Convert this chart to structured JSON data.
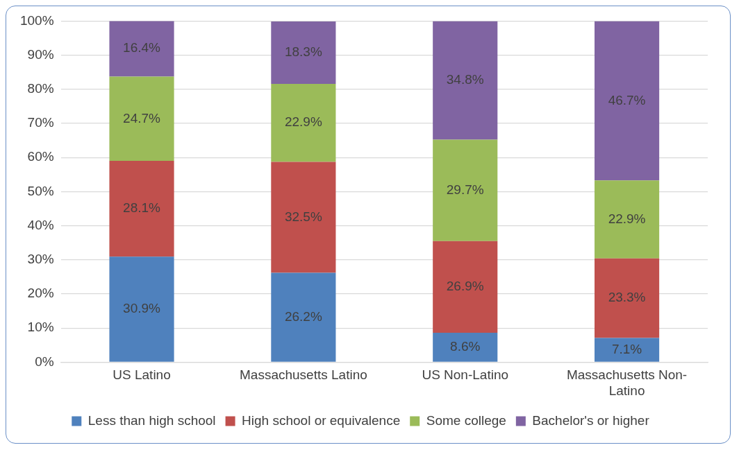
{
  "chart_data": {
    "type": "bar",
    "stacked": true,
    "categories": [
      "US Latino",
      "Massachusetts Latino",
      "US Non-Latino",
      "Massachusetts Non-Latino"
    ],
    "series": [
      {
        "name": "Less than high school",
        "color": "#4f81bd",
        "values": [
          30.9,
          26.2,
          8.6,
          7.1
        ],
        "value_labels": [
          "30.9%",
          "26.2%",
          "8.6%",
          "7.1%"
        ]
      },
      {
        "name": "High school or equivalence",
        "color": "#c0504d",
        "values": [
          28.1,
          32.5,
          26.9,
          23.3
        ],
        "value_labels": [
          "28.1%",
          "32.5%",
          "26.9%",
          "23.3%"
        ]
      },
      {
        "name": "Some college",
        "color": "#9bbb59",
        "values": [
          24.7,
          22.9,
          29.7,
          22.9
        ],
        "value_labels": [
          "24.7%",
          "22.9%",
          "29.7%",
          "22.9%"
        ]
      },
      {
        "name": "Bachelor's or higher",
        "color": "#8064a2",
        "values": [
          16.4,
          18.3,
          34.8,
          46.7
        ],
        "value_labels": [
          "16.4%",
          "18.3%",
          "34.8%",
          "46.7%"
        ]
      }
    ],
    "ylim": [
      0,
      100
    ],
    "yticks": [
      {
        "value": 0,
        "label": "0%"
      },
      {
        "value": 10,
        "label": "10%"
      },
      {
        "value": 20,
        "label": "20%"
      },
      {
        "value": 30,
        "label": "30%"
      },
      {
        "value": 40,
        "label": "40%"
      },
      {
        "value": 50,
        "label": "50%"
      },
      {
        "value": 60,
        "label": "60%"
      },
      {
        "value": 70,
        "label": "70%"
      },
      {
        "value": 80,
        "label": "80%"
      },
      {
        "value": 90,
        "label": "90%"
      },
      {
        "value": 100,
        "label": "100%"
      }
    ],
    "grid": "y",
    "legend": "bottom"
  }
}
